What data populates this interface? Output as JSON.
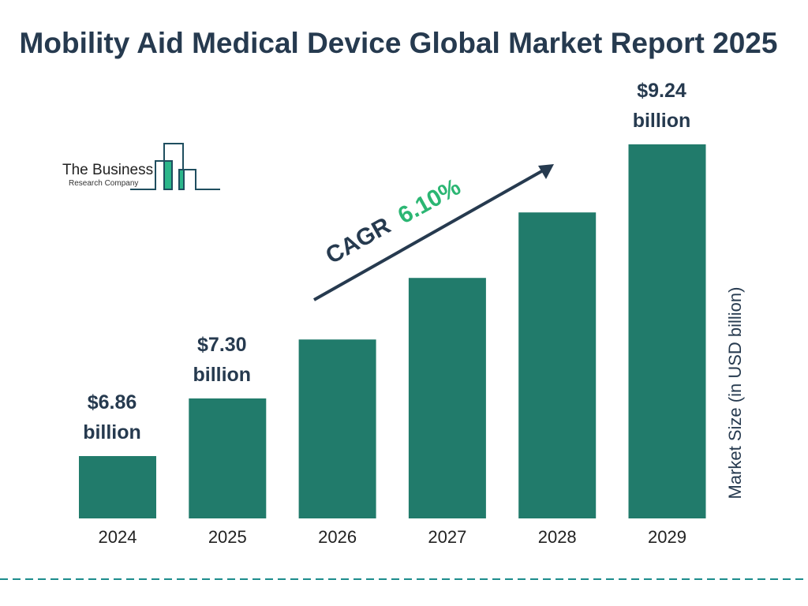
{
  "logo": {
    "line1": "The Business",
    "line2": "Research Company"
  },
  "chart_data": {
    "type": "bar",
    "title": "Mobility Aid Medical Device Global Market Report 2025",
    "ylabel": "Market Size (in USD billion)",
    "categories": [
      "2024",
      "2025",
      "2026",
      "2027",
      "2028",
      "2029"
    ],
    "values": [
      6.86,
      7.3,
      7.75,
      8.22,
      8.72,
      9.24
    ],
    "data_labels": [
      [
        "$6.86",
        "billion"
      ],
      [
        "$7.30",
        "billion"
      ],
      null,
      null,
      null,
      [
        "$9.24",
        "billion"
      ]
    ],
    "annotation": {
      "prefix": "CAGR",
      "value": "6.10%"
    },
    "grid": false,
    "colors": {
      "bar": "#217b6b",
      "title": "#263a4f",
      "cagr": "#2bb673",
      "divider": "#1d8c8c"
    }
  }
}
